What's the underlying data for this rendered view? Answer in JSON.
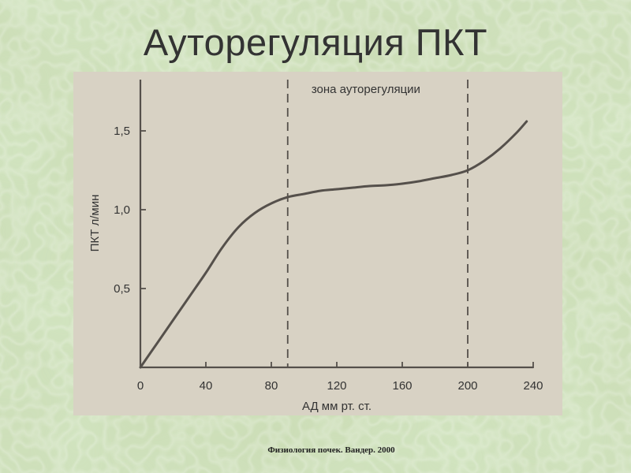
{
  "slide": {
    "title": "Ауторегуляция ПКТ",
    "footer": "Физиология почек. Вандер. 2000"
  },
  "colors": {
    "background": "#c9dcb4",
    "panel": "#d8d2c4",
    "curve": "#55504b",
    "text": "#333333"
  },
  "chart_data": {
    "type": "line",
    "title": "",
    "xlabel": "АД мм рт. ст.",
    "ylabel": "ПКТ л/мин",
    "xlim": [
      0,
      240
    ],
    "ylim": [
      0,
      1.7
    ],
    "xticks": [
      0,
      40,
      80,
      120,
      160,
      200,
      240
    ],
    "xtick_labels": [
      "0",
      "40",
      "80",
      "120",
      "160",
      "200",
      "240"
    ],
    "yticks": [
      0.5,
      1.0,
      1.5
    ],
    "ytick_labels": [
      "0,5",
      "1,0",
      "1,5"
    ],
    "grid": false,
    "legend": "none",
    "series": [
      {
        "x": [
          0,
          10,
          20,
          30,
          40,
          50,
          60,
          70,
          80,
          90,
          100,
          110,
          120,
          130,
          140,
          150,
          160,
          170,
          180,
          190,
          200,
          210,
          220,
          230,
          236
        ],
        "y": [
          0,
          0.15,
          0.3,
          0.45,
          0.6,
          0.76,
          0.89,
          0.98,
          1.04,
          1.08,
          1.1,
          1.12,
          1.13,
          1.14,
          1.15,
          1.155,
          1.165,
          1.18,
          1.2,
          1.22,
          1.25,
          1.31,
          1.39,
          1.49,
          1.56
        ]
      }
    ],
    "annotations": [
      {
        "type": "vline",
        "x": 90
      },
      {
        "type": "vline",
        "x": 200
      },
      {
        "type": "text",
        "text": "зона ауторегуляции",
        "x": 145,
        "y": 1.68
      }
    ]
  }
}
